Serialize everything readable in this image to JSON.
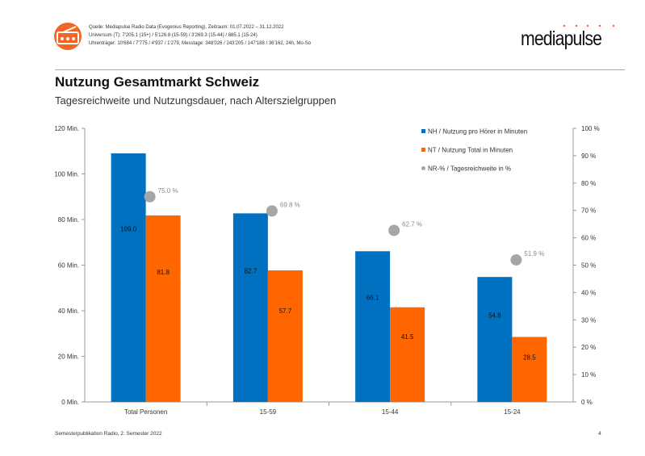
{
  "header": {
    "source_line1": "Quelle: Mediapulse Radio Data (Evogenius Reporting), Zeitraum: 01.07.2022 – 31.12.2022",
    "source_line2": "Universum (T): 7'205.1 (15+) / 5'126.8 (15-59) / 3'269.3 (15-44) / 885.1 (15-24)",
    "source_line3": "Uhrenträger: 10'684 / 7'775 / 4'937 / 1'279, Messtage: 348'026 / 243'205 / 147'188 / 36'162, 24h, Mo-So",
    "logo_text": "mediapulse",
    "icon": "radio-icon"
  },
  "title": "Nutzung Gesamtmarkt Schweiz",
  "subtitle": "Tagesreichweite und Nutzungsdauer, nach Alterszielgruppen",
  "footer": "Semesterpublikation Radio, 2. Semester 2022",
  "page_number": "4",
  "colors": {
    "nh": "#0070c0",
    "nt": "#ff6600",
    "nr": "#a6a6a6",
    "accent": "#f26522"
  },
  "chart_data": {
    "type": "bar",
    "categories": [
      "Total Personen",
      "15-59",
      "15-44",
      "15-24"
    ],
    "series": [
      {
        "name": "NH / Nutzung pro Hörer in Minuten",
        "values": [
          109.0,
          82.7,
          66.1,
          54.8
        ],
        "labels": [
          "109.0",
          "82.7",
          "66.1",
          "54.8"
        ],
        "axis": "left",
        "type": "bar"
      },
      {
        "name": "NT / Nutzung Total in Minuten",
        "values": [
          81.8,
          57.7,
          41.5,
          28.5
        ],
        "labels": [
          "81.8",
          "57.7",
          "41.5",
          "28.5"
        ],
        "axis": "left",
        "type": "bar"
      },
      {
        "name": "NR-% / Tagesreichweite in %",
        "values": [
          75.0,
          69.8,
          62.7,
          51.9
        ],
        "labels": [
          "75.0 %",
          "69.8 %",
          "62.7 %",
          "51.9 %"
        ],
        "axis": "right",
        "type": "scatter"
      }
    ],
    "ylim": [
      0,
      120
    ],
    "y_ticks": [
      "0 Min.",
      "20 Min.",
      "40 Min.",
      "60 Min.",
      "80 Min.",
      "100 Min.",
      "120 Min."
    ],
    "y2lim": [
      0,
      100
    ],
    "y2_ticks": [
      "0 %",
      "10 %",
      "20 %",
      "30 %",
      "40 %",
      "50 %",
      "60 %",
      "70 %",
      "80 %",
      "90 %",
      "100 %"
    ],
    "grid": false,
    "legend": "top-right"
  }
}
